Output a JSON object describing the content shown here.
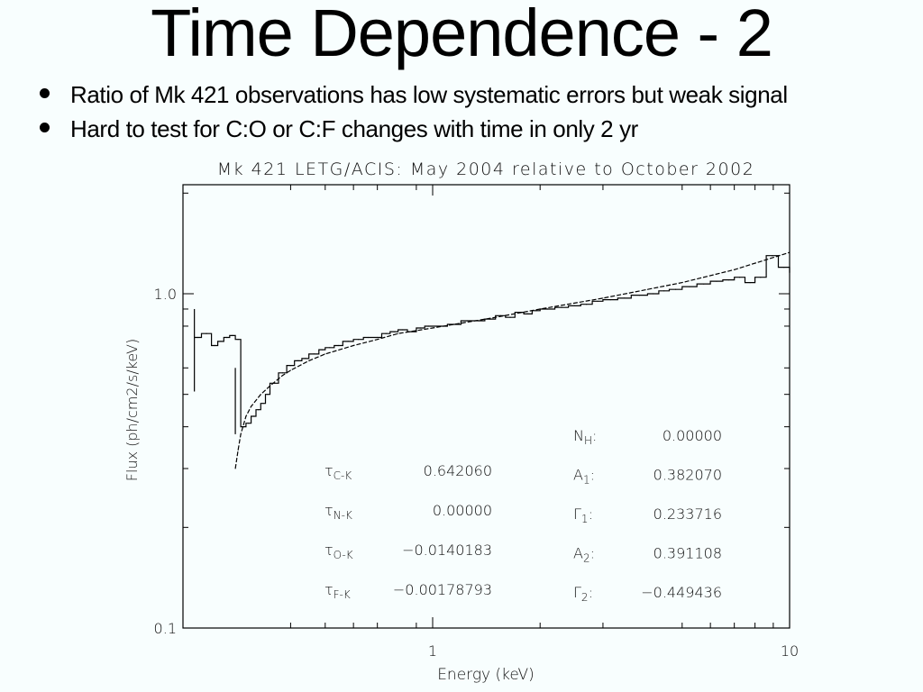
{
  "slide": {
    "title": "Time Dependence - 2",
    "bullets": [
      "Ratio of Mk 421 observations has low systematic errors but weak signal",
      "Hard to test for C:O or C:F changes with time in only 2 yr"
    ]
  },
  "chart_data": {
    "type": "line",
    "title": "Mk 421 LETG/ACIS: May 2004 relative to October 2002",
    "xlabel": "Energy (keV)",
    "ylabel": "Flux (ph/cm2/s/keV)",
    "xscale": "log",
    "yscale": "log",
    "xlim": [
      0.2,
      10
    ],
    "ylim": [
      0.1,
      2.2
    ],
    "x_major_ticks": [
      {
        "value": 1,
        "label": "1"
      },
      {
        "value": 10,
        "label": "10"
      }
    ],
    "x_minor_ticks": [
      0.4,
      0.5,
      0.6,
      0.7,
      0.9,
      2,
      3,
      5,
      6,
      7,
      8,
      9
    ],
    "y_major_ticks": [
      {
        "value": 0.1,
        "label": "0.1"
      },
      {
        "value": 1.0,
        "label": "1.0"
      }
    ],
    "y_minor_ticks": [
      0.2,
      0.3,
      0.4,
      0.5,
      0.6,
      0.8,
      0.9,
      2.0
    ],
    "grid": false,
    "series": [
      {
        "name": "data",
        "style": "histogram",
        "x": [
          0.215,
          0.225,
          0.24,
          0.25,
          0.26,
          0.27,
          0.28,
          0.29,
          0.3,
          0.31,
          0.32,
          0.33,
          0.34,
          0.35,
          0.37,
          0.39,
          0.41,
          0.43,
          0.45,
          0.48,
          0.5,
          0.53,
          0.56,
          0.6,
          0.64,
          0.68,
          0.72,
          0.76,
          0.8,
          0.85,
          0.9,
          0.95,
          1.0,
          1.1,
          1.2,
          1.3,
          1.4,
          1.5,
          1.6,
          1.7,
          1.8,
          1.9,
          2.0,
          2.2,
          2.4,
          2.6,
          2.8,
          3.0,
          3.3,
          3.6,
          4.0,
          4.3,
          4.6,
          5.0,
          5.5,
          6.0,
          6.5,
          7.0,
          7.5,
          8.0,
          8.6,
          9.3,
          10.0
        ],
        "y": [
          0.74,
          0.76,
          0.7,
          0.72,
          0.74,
          0.75,
          0.73,
          0.4,
          0.41,
          0.43,
          0.45,
          0.47,
          0.5,
          0.54,
          0.58,
          0.61,
          0.63,
          0.64,
          0.66,
          0.68,
          0.69,
          0.7,
          0.72,
          0.73,
          0.74,
          0.74,
          0.76,
          0.77,
          0.78,
          0.77,
          0.79,
          0.8,
          0.8,
          0.81,
          0.83,
          0.83,
          0.84,
          0.86,
          0.85,
          0.88,
          0.87,
          0.89,
          0.9,
          0.91,
          0.92,
          0.93,
          0.95,
          0.96,
          0.97,
          0.99,
          1.0,
          1.02,
          1.03,
          1.05,
          1.07,
          1.09,
          1.1,
          1.12,
          1.08,
          1.12,
          1.3,
          1.2,
          1.16
        ]
      },
      {
        "name": "model",
        "style": "dashed",
        "x": [
          0.28,
          0.285,
          0.29,
          0.3,
          0.31,
          0.33,
          0.35,
          0.38,
          0.4,
          0.45,
          0.5,
          0.6,
          0.7,
          0.8,
          1.0,
          1.5,
          2.0,
          3.0,
          4.0,
          5.0,
          7.0,
          10.0
        ],
        "y": [
          0.3,
          0.34,
          0.38,
          0.43,
          0.46,
          0.5,
          0.53,
          0.57,
          0.59,
          0.63,
          0.66,
          0.7,
          0.73,
          0.76,
          0.79,
          0.85,
          0.9,
          0.97,
          1.03,
          1.08,
          1.18,
          1.33
        ]
      }
    ],
    "error_bars": [
      {
        "x": 0.215,
        "low": 0.51,
        "high": 0.9
      },
      {
        "x": 0.28,
        "low": 0.38,
        "high": 0.6
      }
    ],
    "annotations_left": [
      {
        "symbol": "τ",
        "sub": "C-K",
        "value": "0.642060"
      },
      {
        "symbol": "τ",
        "sub": "N-K",
        "value": "0.00000"
      },
      {
        "symbol": "τ",
        "sub": "O-K",
        "value": "-0.0140183"
      },
      {
        "symbol": "τ",
        "sub": "F-K",
        "value": "-0.00178793"
      }
    ],
    "annotations_right": [
      {
        "symbol": "N",
        "sub": "H",
        "value": "0.00000"
      },
      {
        "symbol": "A",
        "sub": "1",
        "value": "0.382070"
      },
      {
        "symbol": "Γ",
        "sub": "1",
        "value": "0.233716"
      },
      {
        "symbol": "A",
        "sub": "2",
        "value": "0.391108"
      },
      {
        "symbol": "Γ",
        "sub": "2",
        "value": "-0.449436"
      }
    ]
  },
  "colors": {
    "background": "#f8fefe",
    "ink": "#000000"
  }
}
